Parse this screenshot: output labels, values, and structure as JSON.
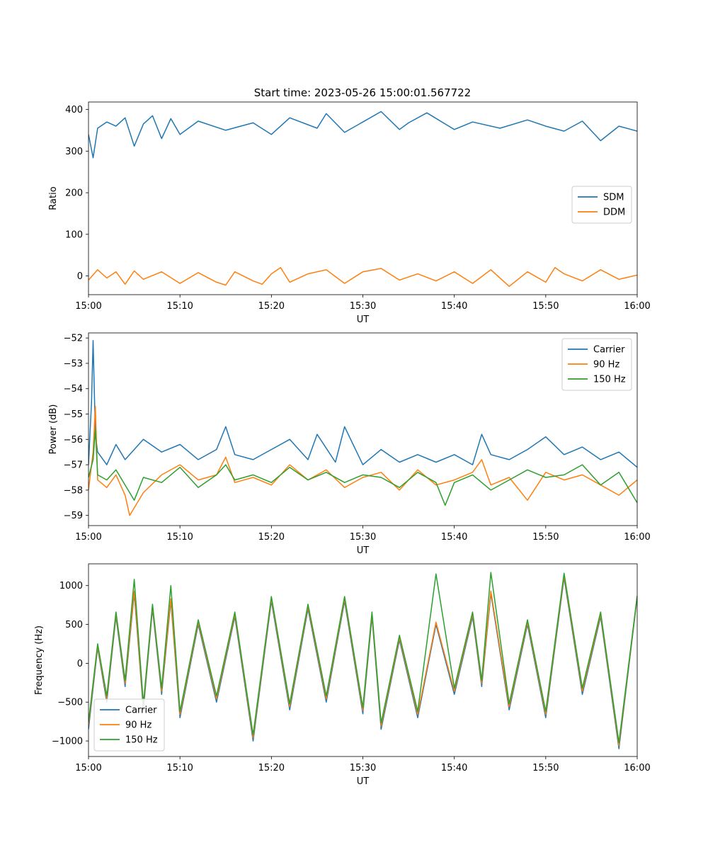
{
  "figure_title": "Start time: 2023-05-26 15:00:01.567722",
  "colors": {
    "blue": "#1f77b4",
    "orange": "#ff7f0e",
    "green": "#2ca02c"
  },
  "chart_data": [
    {
      "type": "line",
      "title": "Start time: 2023-05-26 15:00:01.567722",
      "xlabel": "UT",
      "ylabel": "Ratio",
      "xlim": [
        "15:00",
        "16:00"
      ],
      "ylim": [
        -45,
        418
      ],
      "xticks": [
        "15:00",
        "15:10",
        "15:20",
        "15:30",
        "15:40",
        "15:50",
        "16:00"
      ],
      "yticks": [
        0,
        100,
        200,
        300,
        400
      ],
      "legend": "center-right",
      "grid": false,
      "series": [
        {
          "name": "SDM",
          "color": "#1f77b4",
          "x": [
            "15:00",
            "15:00:30",
            "15:01",
            "15:02",
            "15:03",
            "15:04",
            "15:05",
            "15:06",
            "15:07",
            "15:08",
            "15:09",
            "15:10",
            "15:12",
            "15:15",
            "15:18",
            "15:20",
            "15:22",
            "15:25",
            "15:26",
            "15:28",
            "15:30",
            "15:32",
            "15:34",
            "15:35",
            "15:37",
            "15:40",
            "15:42",
            "15:45",
            "15:48",
            "15:50",
            "15:52",
            "15:54",
            "15:56",
            "15:58",
            "16:00"
          ],
          "y": [
            340,
            284,
            355,
            370,
            360,
            380,
            312,
            365,
            385,
            330,
            378,
            340,
            372,
            350,
            368,
            340,
            380,
            355,
            390,
            345,
            370,
            395,
            352,
            368,
            392,
            352,
            370,
            355,
            375,
            360,
            348,
            372,
            325,
            360,
            348
          ]
        },
        {
          "name": "DDM",
          "color": "#ff7f0e",
          "x": [
            "15:00",
            "15:01",
            "15:02",
            "15:03",
            "15:04",
            "15:05",
            "15:06",
            "15:08",
            "15:10",
            "15:12",
            "15:14",
            "15:15",
            "15:16",
            "15:18",
            "15:19",
            "15:20",
            "15:21",
            "15:22",
            "15:24",
            "15:26",
            "15:28",
            "15:30",
            "15:32",
            "15:34",
            "15:36",
            "15:38",
            "15:40",
            "15:42",
            "15:44",
            "15:46",
            "15:48",
            "15:50",
            "15:51",
            "15:52",
            "15:54",
            "15:56",
            "15:58",
            "16:00"
          ],
          "y": [
            -10,
            15,
            -5,
            10,
            -20,
            12,
            -8,
            10,
            -18,
            8,
            -15,
            -22,
            10,
            -12,
            -20,
            5,
            20,
            -15,
            5,
            15,
            -18,
            10,
            18,
            -10,
            5,
            -12,
            10,
            -18,
            15,
            -25,
            10,
            -15,
            20,
            5,
            -12,
            15,
            -8,
            2
          ]
        }
      ]
    },
    {
      "type": "line",
      "xlabel": "UT",
      "ylabel": "Power (dB)",
      "xlim": [
        "15:00",
        "16:00"
      ],
      "ylim": [
        -59.4,
        -51.8
      ],
      "xticks": [
        "15:00",
        "15:10",
        "15:20",
        "15:30",
        "15:40",
        "15:50",
        "16:00"
      ],
      "yticks": [
        -52,
        -53,
        -54,
        -55,
        -56,
        -57,
        -58,
        -59
      ],
      "legend": "top-right",
      "grid": false,
      "series": [
        {
          "name": "Carrier",
          "color": "#1f77b4",
          "x": [
            "15:00",
            "15:00:20",
            "15:00:30",
            "15:00:45",
            "15:01",
            "15:02",
            "15:03",
            "15:04",
            "15:06",
            "15:08",
            "15:10",
            "15:12",
            "15:14",
            "15:15",
            "15:16",
            "15:18",
            "15:20",
            "15:22",
            "15:24",
            "15:25",
            "15:27",
            "15:28",
            "15:30",
            "15:32",
            "15:34",
            "15:36",
            "15:38",
            "15:40",
            "15:42",
            "15:43",
            "15:44",
            "15:46",
            "15:48",
            "15:50",
            "15:52",
            "15:54",
            "15:56",
            "15:58",
            "16:00"
          ],
          "y": [
            -57.0,
            -54.5,
            -52.1,
            -55.8,
            -56.5,
            -57.0,
            -56.2,
            -56.8,
            -56.0,
            -56.5,
            -56.2,
            -56.8,
            -56.4,
            -55.5,
            -56.6,
            -56.8,
            -56.4,
            -56.0,
            -56.8,
            -55.8,
            -56.9,
            -55.5,
            -57.0,
            -56.4,
            -56.9,
            -56.6,
            -56.9,
            -56.6,
            -57.0,
            -55.8,
            -56.6,
            -56.8,
            -56.4,
            -55.9,
            -56.6,
            -56.3,
            -56.8,
            -56.5,
            -57.1
          ]
        },
        {
          "name": "90 Hz",
          "color": "#ff7f0e",
          "x": [
            "15:00",
            "15:00:30",
            "15:00:45",
            "15:01",
            "15:02",
            "15:03",
            "15:04",
            "15:04:30",
            "15:06",
            "15:08",
            "15:10",
            "15:12",
            "15:14",
            "15:15",
            "15:16",
            "15:18",
            "15:20",
            "15:22",
            "15:24",
            "15:26",
            "15:28",
            "15:30",
            "15:32",
            "15:34",
            "15:36",
            "15:38",
            "15:40",
            "15:42",
            "15:43",
            "15:44",
            "15:46",
            "15:48",
            "15:50",
            "15:52",
            "15:54",
            "15:56",
            "15:58",
            "16:00"
          ],
          "y": [
            -58.0,
            -56.5,
            -54.7,
            -57.6,
            -57.9,
            -57.4,
            -58.2,
            -59.0,
            -58.1,
            -57.4,
            -57.0,
            -57.6,
            -57.4,
            -56.7,
            -57.7,
            -57.5,
            -57.8,
            -57.0,
            -57.6,
            -57.2,
            -57.9,
            -57.5,
            -57.3,
            -58.0,
            -57.2,
            -57.8,
            -57.6,
            -57.3,
            -56.8,
            -57.8,
            -57.5,
            -58.4,
            -57.3,
            -57.6,
            -57.4,
            -57.8,
            -58.2,
            -57.6
          ]
        },
        {
          "name": "150 Hz",
          "color": "#2ca02c",
          "x": [
            "15:00",
            "15:00:30",
            "15:00:45",
            "15:01",
            "15:02",
            "15:03",
            "15:04",
            "15:05",
            "15:06",
            "15:08",
            "15:10",
            "15:12",
            "15:14",
            "15:15",
            "15:16",
            "15:18",
            "15:20",
            "15:22",
            "15:24",
            "15:26",
            "15:28",
            "15:30",
            "15:32",
            "15:34",
            "15:36",
            "15:38",
            "15:39",
            "15:40",
            "15:42",
            "15:44",
            "15:46",
            "15:48",
            "15:50",
            "15:52",
            "15:54",
            "15:56",
            "15:58",
            "16:00"
          ],
          "y": [
            -57.5,
            -56.8,
            -55.6,
            -57.4,
            -57.6,
            -57.2,
            -57.8,
            -58.4,
            -57.5,
            -57.7,
            -57.1,
            -57.9,
            -57.4,
            -57.0,
            -57.6,
            -57.4,
            -57.7,
            -57.1,
            -57.6,
            -57.3,
            -57.7,
            -57.4,
            -57.5,
            -57.9,
            -57.3,
            -57.7,
            -58.6,
            -57.7,
            -57.4,
            -58.0,
            -57.6,
            -57.2,
            -57.5,
            -57.4,
            -57.0,
            -57.8,
            -57.3,
            -58.5
          ]
        }
      ]
    },
    {
      "type": "line",
      "xlabel": "UT",
      "ylabel": "Frequency (Hz)",
      "xlim": [
        "15:00",
        "16:00"
      ],
      "ylim": [
        -1200,
        1280
      ],
      "xticks": [
        "15:00",
        "15:10",
        "15:20",
        "15:30",
        "15:40",
        "15:50",
        "16:00"
      ],
      "yticks": [
        1000,
        500,
        0,
        -500,
        -1000
      ],
      "legend": "bottom-left",
      "grid": false,
      "series": [
        {
          "name": "Carrier",
          "color": "#1f77b4",
          "x": [
            "15:00",
            "15:01",
            "15:02",
            "15:03",
            "15:04",
            "15:05",
            "15:06",
            "15:07",
            "15:08",
            "15:09",
            "15:10",
            "15:12",
            "15:14",
            "15:16",
            "15:18",
            "15:20",
            "15:22",
            "15:24",
            "15:26",
            "15:28",
            "15:30",
            "15:31",
            "15:32",
            "15:34",
            "15:36",
            "15:38",
            "15:40",
            "15:42",
            "15:43",
            "15:44",
            "15:46",
            "15:48",
            "15:50",
            "15:52",
            "15:54",
            "15:56",
            "15:58",
            "16:00"
          ],
          "y": [
            -850,
            200,
            -500,
            600,
            -300,
            900,
            -600,
            700,
            -400,
            800,
            -700,
            500,
            -500,
            600,
            -1000,
            800,
            -600,
            700,
            -500,
            800,
            -650,
            600,
            -850,
            300,
            -700,
            500,
            -400,
            600,
            -300,
            900,
            -600,
            500,
            -700,
            1100,
            -400,
            600,
            -1100,
            850
          ]
        },
        {
          "name": "90 Hz",
          "color": "#ff7f0e",
          "x": [
            "15:00",
            "15:01",
            "15:02",
            "15:03",
            "15:04",
            "15:05",
            "15:06",
            "15:07",
            "15:08",
            "15:09",
            "15:10",
            "15:12",
            "15:14",
            "15:16",
            "15:18",
            "15:20",
            "15:22",
            "15:24",
            "15:26",
            "15:28",
            "15:30",
            "15:31",
            "15:32",
            "15:34",
            "15:36",
            "15:38",
            "15:40",
            "15:42",
            "15:43",
            "15:44",
            "15:46",
            "15:48",
            "15:50",
            "15:52",
            "15:54",
            "15:56",
            "15:58",
            "16:00"
          ],
          "y": [
            -800,
            220,
            -460,
            630,
            -260,
            930,
            -560,
            730,
            -360,
            830,
            -660,
            530,
            -460,
            630,
            -960,
            830,
            -560,
            730,
            -460,
            830,
            -610,
            630,
            -810,
            330,
            -660,
            530,
            -360,
            630,
            -260,
            930,
            -560,
            530,
            -660,
            1130,
            -360,
            630,
            -1060,
            860
          ]
        },
        {
          "name": "150 Hz",
          "color": "#2ca02c",
          "x": [
            "15:00",
            "15:01",
            "15:02",
            "15:03",
            "15:04",
            "15:05",
            "15:06",
            "15:07",
            "15:08",
            "15:09",
            "15:10",
            "15:12",
            "15:14",
            "15:16",
            "15:18",
            "15:20",
            "15:22",
            "15:24",
            "15:26",
            "15:28",
            "15:30",
            "15:31",
            "15:32",
            "15:34",
            "15:36",
            "15:38",
            "15:40",
            "15:42",
            "15:43",
            "15:44",
            "15:46",
            "15:48",
            "15:50",
            "15:52",
            "15:54",
            "15:56",
            "15:58",
            "16:00"
          ],
          "y": [
            -760,
            250,
            -420,
            660,
            -220,
            1080,
            -520,
            760,
            -320,
            1000,
            -620,
            560,
            -420,
            660,
            -920,
            860,
            -520,
            760,
            -420,
            860,
            -570,
            660,
            -770,
            360,
            -620,
            1150,
            -320,
            660,
            -220,
            1170,
            -520,
            560,
            -620,
            1160,
            -320,
            660,
            -1020,
            870
          ]
        }
      ]
    }
  ]
}
